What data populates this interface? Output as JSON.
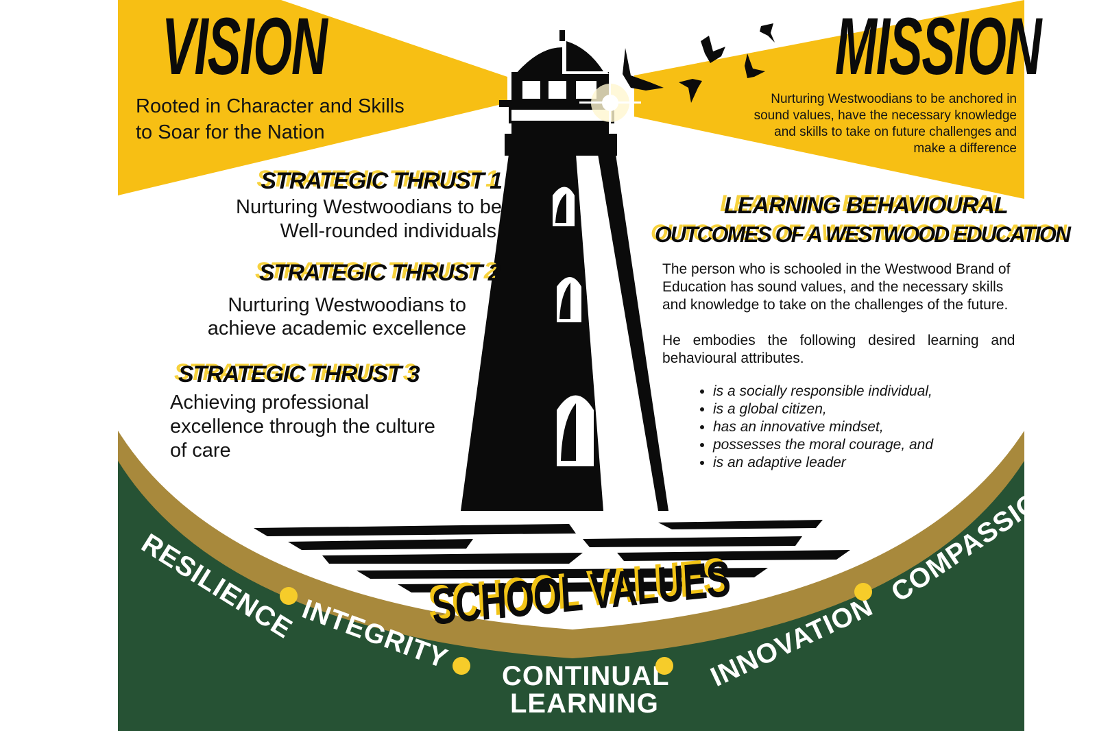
{
  "colors": {
    "yellow": "#f7bf14",
    "green": "#265234",
    "gold": "#a8893c",
    "black": "#0b0b0b",
    "dot": "#f6cc2a"
  },
  "vision": {
    "heading": "VISION",
    "text_line1": "Rooted in Character and Skills",
    "text_line2": "to Soar for the Nation"
  },
  "mission": {
    "heading": "MISSION",
    "lines": [
      "Nurturing Westwoodians to be anchored in",
      "sound values, have the necessary knowledge",
      "and skills to take on future challenges and",
      "make a difference"
    ]
  },
  "thrusts": [
    {
      "heading": "STRATEGIC THRUST 1",
      "line1": "Nurturing Westwoodians to be",
      "line2": "Well-rounded individuals"
    },
    {
      "heading": "STRATEGIC THRUST 2",
      "line1": "Nurturing Westwoodians to",
      "line2": "achieve academic excellence"
    },
    {
      "heading": "STRATEGIC THRUST 3",
      "line1": "Achieving professional",
      "line2": "excellence through the culture",
      "line3": "of care"
    }
  ],
  "outcomes": {
    "heading_line1": "LEARNING BEHAVIOURAL",
    "heading_line2": "OUTCOMES OF A WESTWOOD EDUCATION",
    "para1_lines": [
      "The person who is schooled in the Westwood Brand of",
      "Education has sound values, and the necessary skills",
      "and knowledge to take on the challenges of the future."
    ],
    "para2_lines": [
      "He embodies the following desired learning and",
      "behavioural attributes."
    ],
    "attributes": [
      "is a socially responsible individual,",
      "is a global citizen,",
      "has an innovative mindset,",
      "possesses the moral courage, and",
      "is an adaptive leader"
    ]
  },
  "school_values": {
    "heading": "SCHOOL VALUES",
    "values": {
      "resilience": "RESILIENCE",
      "integrity": "INTEGRITY",
      "continual_1": "CONTINUAL",
      "continual_2": "LEARNING",
      "innovation": "INNOVATION",
      "compassion": "COMPASSION"
    }
  },
  "icons": [
    "lighthouse-icon",
    "bird-icon",
    "light-flare-icon"
  ]
}
